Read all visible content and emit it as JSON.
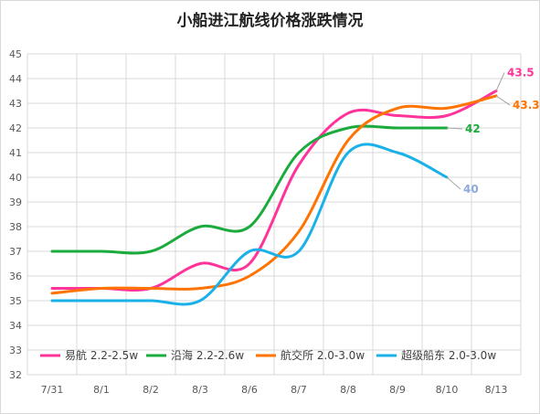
{
  "chart_data": {
    "type": "line",
    "title": "小船进江航线价格涨跌情况",
    "xlabel": "",
    "ylabel": "",
    "categories": [
      "7/31",
      "8/1",
      "8/2",
      "8/3",
      "8/6",
      "8/7",
      "8/8",
      "8/9",
      "8/10",
      "8/13"
    ],
    "ylim": [
      32,
      45
    ],
    "yticks": [
      "32",
      "33",
      "34",
      "35",
      "36",
      "37",
      "38",
      "39",
      "40",
      "41",
      "42",
      "43",
      "44",
      "45"
    ],
    "grid": true,
    "legend_position": "bottom",
    "series": [
      {
        "name": "易航 2.2-2.5w",
        "color": "#ff3399",
        "values": [
          35.5,
          35.5,
          35.5,
          36.5,
          36.5,
          40.5,
          42.6,
          42.5,
          42.5,
          43.5
        ],
        "end_label": "43.5",
        "end_label_color": "#ff3399"
      },
      {
        "name": "沿海 2.2-2.6w",
        "color": "#1aab3c",
        "values": [
          37,
          37,
          37,
          38,
          38,
          41,
          42,
          42,
          42,
          null
        ],
        "end_label": "42",
        "end_label_color": "#1aab3c"
      },
      {
        "name": "航交所 2.0-3.0w",
        "color": "#ff7300",
        "values": [
          35.3,
          35.5,
          35.5,
          35.5,
          36,
          37.8,
          41.5,
          42.8,
          42.8,
          43.3
        ],
        "end_label": "43.3",
        "end_label_color": "#ff7300"
      },
      {
        "name": "超级船东 2.0-3.0w",
        "color": "#1ab0e8",
        "values": [
          35,
          35,
          35,
          35,
          37,
          37,
          41,
          41,
          40,
          null
        ],
        "end_label": "40",
        "end_label_color": "#8eaadb"
      }
    ]
  }
}
